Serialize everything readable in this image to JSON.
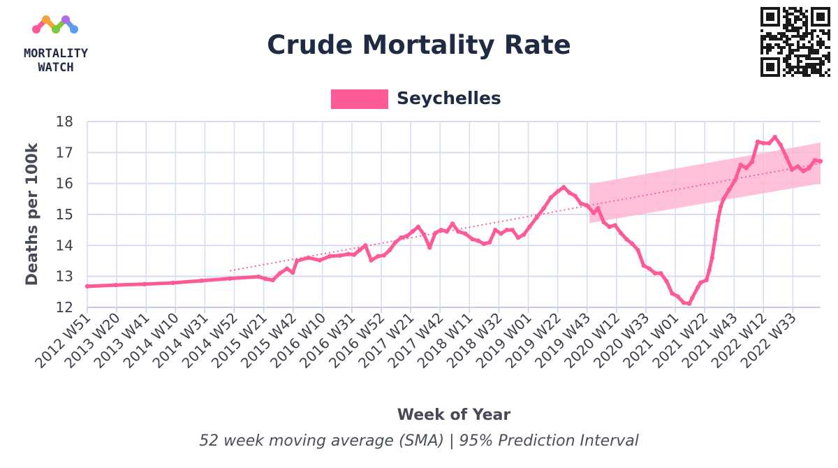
{
  "logo": {
    "line1": "MORTALITY",
    "line2": "WATCH"
  },
  "colors": {
    "series": "#ff5a98",
    "band": "#ffb6d3",
    "grid": "#d6dcf2",
    "axis": "#c8cde6"
  },
  "chart_data": {
    "type": "line",
    "title": "Crude Mortality Rate",
    "xlabel": "Week of Year",
    "ylabel": "Deaths per 100k",
    "caption": "52 week moving average (SMA) | 95% Prediction Interval",
    "ylim": [
      12,
      18
    ],
    "yticks": [
      12,
      13,
      14,
      15,
      16,
      17,
      18
    ],
    "grid": true,
    "legend_position": "top-center",
    "x_tick_labels": [
      "2012 W51",
      "2013 W20",
      "2013 W41",
      "2014 W10",
      "2014 W31",
      "2014 W52",
      "2015 W21",
      "2015 W42",
      "2016 W10",
      "2016 W31",
      "2016 W52",
      "2017 W21",
      "2017 W42",
      "2018 W11",
      "2018 W32",
      "2019 W01",
      "2019 W22",
      "2019 W43",
      "2020 W12",
      "2020 W33",
      "2021 W01",
      "2021 W22",
      "2021 W43",
      "2022 W12",
      "2022 W33"
    ],
    "x_range_weeks": [
      0,
      500
    ],
    "series": [
      {
        "name": "Seychelles",
        "points": [
          [
            0,
            12.68
          ],
          [
            20,
            12.72
          ],
          [
            40,
            12.75
          ],
          [
            60,
            12.79
          ],
          [
            80,
            12.86
          ],
          [
            100,
            12.93
          ],
          [
            120,
            12.99
          ],
          [
            125,
            12.92
          ],
          [
            130,
            12.88
          ],
          [
            135,
            13.1
          ],
          [
            140,
            13.25
          ],
          [
            144,
            13.12
          ],
          [
            147,
            13.5
          ],
          [
            155,
            13.6
          ],
          [
            163,
            13.52
          ],
          [
            170,
            13.65
          ],
          [
            177,
            13.67
          ],
          [
            183,
            13.72
          ],
          [
            187,
            13.7
          ],
          [
            191,
            13.85
          ],
          [
            195,
            14.0
          ],
          [
            199,
            13.52
          ],
          [
            204,
            13.65
          ],
          [
            208,
            13.68
          ],
          [
            212,
            13.85
          ],
          [
            216,
            14.1
          ],
          [
            220,
            14.25
          ],
          [
            224,
            14.3
          ],
          [
            228,
            14.45
          ],
          [
            232,
            14.6
          ],
          [
            236,
            14.35
          ],
          [
            240,
            13.93
          ],
          [
            244,
            14.4
          ],
          [
            248,
            14.5
          ],
          [
            252,
            14.45
          ],
          [
            256,
            14.7
          ],
          [
            260,
            14.45
          ],
          [
            265,
            14.38
          ],
          [
            270,
            14.2
          ],
          [
            274,
            14.15
          ],
          [
            278,
            14.05
          ],
          [
            282,
            14.1
          ],
          [
            286,
            14.5
          ],
          [
            290,
            14.38
          ],
          [
            294,
            14.5
          ],
          [
            298,
            14.5
          ],
          [
            302,
            14.25
          ],
          [
            306,
            14.35
          ],
          [
            310,
            14.6
          ],
          [
            315,
            14.9
          ],
          [
            320,
            15.2
          ],
          [
            325,
            15.55
          ],
          [
            330,
            15.75
          ],
          [
            334,
            15.88
          ],
          [
            338,
            15.7
          ],
          [
            342,
            15.6
          ],
          [
            346,
            15.35
          ],
          [
            350,
            15.3
          ],
          [
            355,
            15.05
          ],
          [
            358,
            15.2
          ],
          [
            362,
            14.75
          ],
          [
            366,
            14.6
          ],
          [
            370,
            14.65
          ],
          [
            374,
            14.4
          ],
          [
            378,
            14.2
          ],
          [
            382,
            14.05
          ],
          [
            386,
            13.85
          ],
          [
            390,
            13.35
          ],
          [
            394,
            13.25
          ],
          [
            398,
            13.1
          ],
          [
            402,
            13.1
          ],
          [
            406,
            12.85
          ],
          [
            410,
            12.45
          ],
          [
            414,
            12.35
          ],
          [
            418,
            12.15
          ],
          [
            422,
            12.12
          ],
          [
            424,
            12.3
          ],
          [
            428,
            12.65
          ],
          [
            430,
            12.8
          ],
          [
            434,
            12.88
          ],
          [
            436,
            13.2
          ],
          [
            438,
            13.6
          ],
          [
            440,
            14.2
          ],
          [
            442,
            14.8
          ],
          [
            444,
            15.25
          ],
          [
            446,
            15.5
          ],
          [
            450,
            15.8
          ],
          [
            454,
            16.1
          ],
          [
            458,
            16.6
          ],
          [
            462,
            16.5
          ],
          [
            466,
            16.7
          ],
          [
            470,
            17.35
          ],
          [
            474,
            17.3
          ],
          [
            478,
            17.3
          ],
          [
            482,
            17.5
          ],
          [
            486,
            17.25
          ],
          [
            490,
            16.85
          ],
          [
            494,
            16.45
          ],
          [
            498,
            16.55
          ],
          [
            502,
            16.4
          ],
          [
            506,
            16.5
          ],
          [
            510,
            16.75
          ],
          [
            514,
            16.72
          ]
        ]
      }
    ],
    "baseline": {
      "start": [
        100,
        13.18
      ],
      "end": [
        514,
        16.65
      ]
    },
    "prediction_interval": {
      "start_week": 352,
      "end_week": 514,
      "lower": [
        14.72,
        16.0
      ],
      "upper": [
        15.98,
        17.32
      ]
    }
  }
}
